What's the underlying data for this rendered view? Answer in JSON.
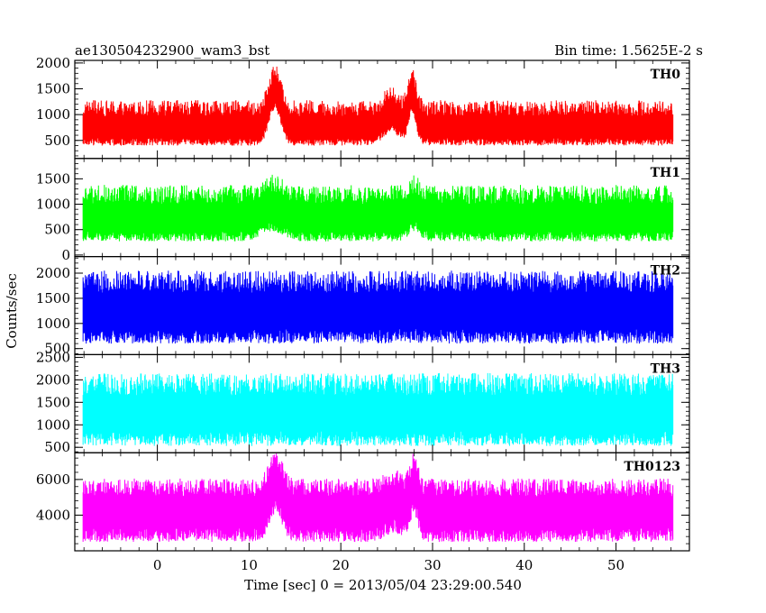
{
  "header": {
    "title": "ae130504232900_wam3_bst",
    "bin_time": "Bin time: 1.5625E-2 s"
  },
  "chart_data": {
    "type": "line",
    "xlabel": "Time [sec] 0 = 2013/05/04 23:29:00.540",
    "ylabel": "Counts/sec",
    "xlim": [
      -9,
      58
    ],
    "xticks": [
      0,
      10,
      20,
      30,
      40,
      50
    ],
    "data_x_range": [
      -8.1,
      56.2
    ],
    "panels": [
      {
        "name": "TH0",
        "color": "#ff0000",
        "ylim": [
          150,
          2050
        ],
        "yticks": [
          500,
          1000,
          1500,
          2000
        ],
        "baseline": 720,
        "noise_lo": 320,
        "noise_hi": 560,
        "peaks": [
          [
            12.8,
            0.9,
            700
          ],
          [
            27.8,
            0.6,
            620
          ],
          [
            25.5,
            1.2,
            260
          ]
        ]
      },
      {
        "name": "TH1",
        "color": "#00ff00",
        "ylim": [
          -30,
          1900
        ],
        "yticks": [
          0,
          500,
          1000,
          1500
        ],
        "baseline": 700,
        "noise_lo": 430,
        "noise_hi": 680,
        "peaks": [
          [
            12.5,
            1.5,
            200
          ],
          [
            28,
            0.8,
            200
          ]
        ]
      },
      {
        "name": "TH2",
        "color": "#0000ff",
        "ylim": [
          380,
          2330
        ],
        "yticks": [
          500,
          1000,
          1500,
          2000
        ],
        "baseline": 1250,
        "noise_lo": 650,
        "noise_hi": 800,
        "peaks": []
      },
      {
        "name": "TH3",
        "color": "#00ffff",
        "ylim": [
          380,
          2560
        ],
        "yticks": [
          500,
          1000,
          1500,
          2000,
          2500
        ],
        "baseline": 1250,
        "noise_lo": 720,
        "noise_hi": 900,
        "peaks": []
      },
      {
        "name": "TH0123",
        "color": "#ff00ff",
        "ylim": [
          2000,
          7500
        ],
        "yticks": [
          4000,
          6000
        ],
        "baseline": 4250,
        "noise_lo": 1750,
        "noise_hi": 1800,
        "peaks": [
          [
            12.9,
            1.0,
            1600
          ],
          [
            28,
            0.6,
            1500
          ],
          [
            25.8,
            1.3,
            500
          ]
        ]
      }
    ]
  }
}
